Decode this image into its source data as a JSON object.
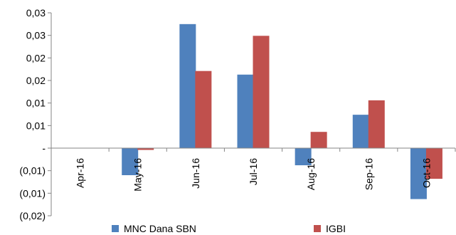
{
  "chart_data": {
    "type": "bar",
    "categories": [
      "Apr-16",
      "May-16",
      "Jun-16",
      "Jul-16",
      "Aug-16",
      "Sep-16",
      "Oct-16"
    ],
    "series": [
      {
        "name": "MNC Dana SBN",
        "color": "#4F81BD",
        "values": [
          0,
          -0.006,
          0.0275,
          0.0163,
          -0.0038,
          0.0074,
          -0.0113
        ]
      },
      {
        "name": "IGBI",
        "color": "#C0504D",
        "values": [
          0,
          -0.0004,
          0.0171,
          0.0249,
          0.0036,
          0.0106,
          -0.0068
        ]
      }
    ],
    "ylim": [
      -0.015,
      0.03
    ],
    "yticks": [
      0.03,
      0.025,
      0.02,
      0.015,
      0.01,
      0.005,
      0,
      -0.005,
      -0.01,
      -0.015
    ],
    "ytick_labels": [
      "0,03",
      "0,03",
      "0,02",
      "0,02",
      "0,01",
      "0,01",
      "-",
      "(0,01)",
      "(0,01)",
      "(0,02)"
    ],
    "grid": false,
    "legend": "bottom",
    "xlabel": "",
    "ylabel": "",
    "title": ""
  }
}
